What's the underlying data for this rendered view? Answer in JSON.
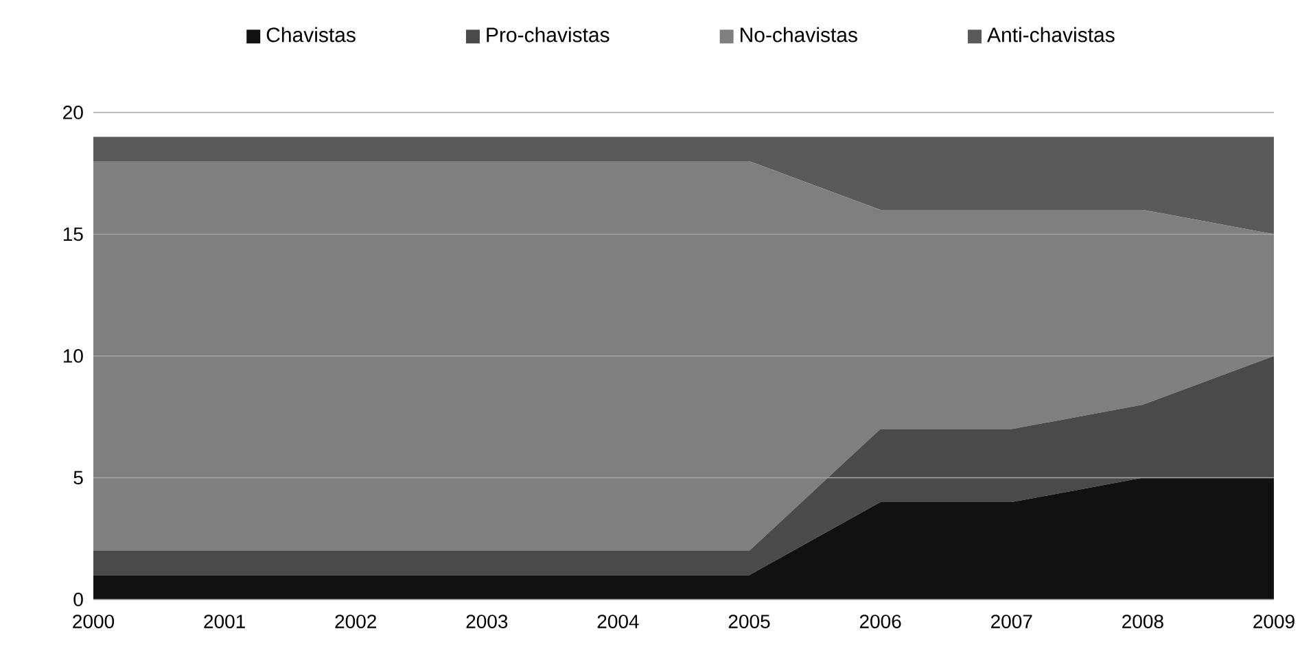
{
  "chart_data": {
    "type": "area",
    "stacked": true,
    "x": [
      2000,
      2001,
      2002,
      2003,
      2004,
      2005,
      2006,
      2007,
      2008,
      2009
    ],
    "series": [
      {
        "name": "Chavistas",
        "color": "#111111",
        "values": [
          1,
          1,
          1,
          1,
          1,
          1,
          4,
          4,
          5,
          5
        ]
      },
      {
        "name": "Pro-chavistas",
        "color": "#4a4a4a",
        "values": [
          1,
          1,
          1,
          1,
          1,
          1,
          3,
          3,
          3,
          5
        ]
      },
      {
        "name": "No-chavistas",
        "color": "#7f7f7f",
        "values": [
          16,
          16,
          16,
          16,
          16,
          16,
          9,
          9,
          8,
          5
        ]
      },
      {
        "name": "Anti-chavistas",
        "color": "#5a5a5a",
        "values": [
          1,
          1,
          1,
          1,
          1,
          1,
          3,
          3,
          3,
          4
        ]
      }
    ],
    "xlim": [
      2000,
      2009
    ],
    "xticks": [
      2000,
      2001,
      2002,
      2003,
      2004,
      2005,
      2006,
      2007,
      2008,
      2009
    ],
    "ylim": [
      0,
      20
    ],
    "yticks": [
      0,
      5,
      10,
      15,
      20
    ],
    "grid": "y",
    "legend": "top"
  }
}
